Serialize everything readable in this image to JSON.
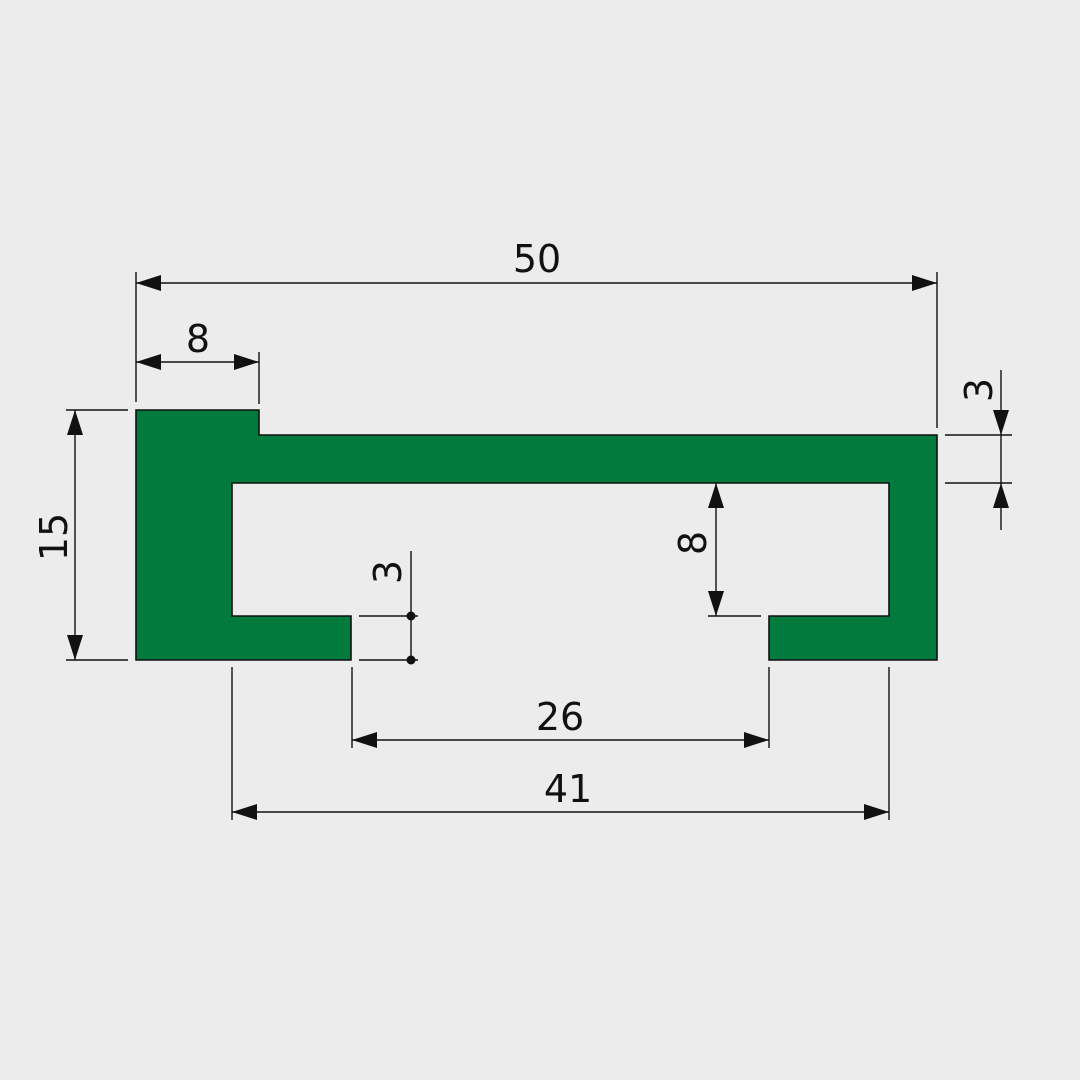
{
  "colors": {
    "background": "#ececec",
    "profile_fill": "#007a3d",
    "line": "#111111"
  },
  "dimensions": {
    "overall_width": "50",
    "top_step_width": "8",
    "overall_height": "15",
    "top_wall_thickness": "3",
    "lip_thickness": "3",
    "inner_height": "8",
    "slot_opening": "26",
    "inner_width": "41"
  }
}
